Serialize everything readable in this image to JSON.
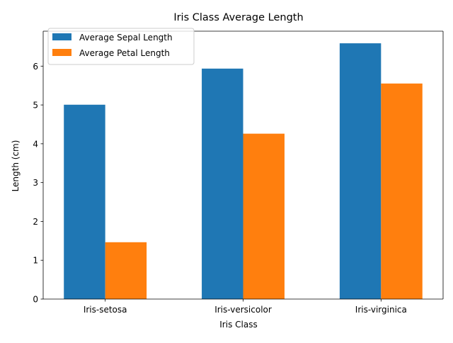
{
  "chart_data": {
    "type": "bar",
    "title": "Iris Class Average Length",
    "xlabel": "Iris Class",
    "ylabel": "Length (cm)",
    "categories": [
      "Iris-setosa",
      "Iris-versicolor",
      "Iris-virginica"
    ],
    "series": [
      {
        "name": "Average Sepal Length",
        "color": "#1f77b4",
        "values": [
          5.006,
          5.936,
          6.588
        ]
      },
      {
        "name": "Average Petal Length",
        "color": "#ff7f0e",
        "values": [
          1.464,
          4.26,
          5.552
        ]
      }
    ],
    "ylim": [
      0,
      6.9
    ],
    "yticks": [
      0,
      1,
      2,
      3,
      4,
      5,
      6
    ],
    "grid": false,
    "legend_position": "top-left"
  }
}
